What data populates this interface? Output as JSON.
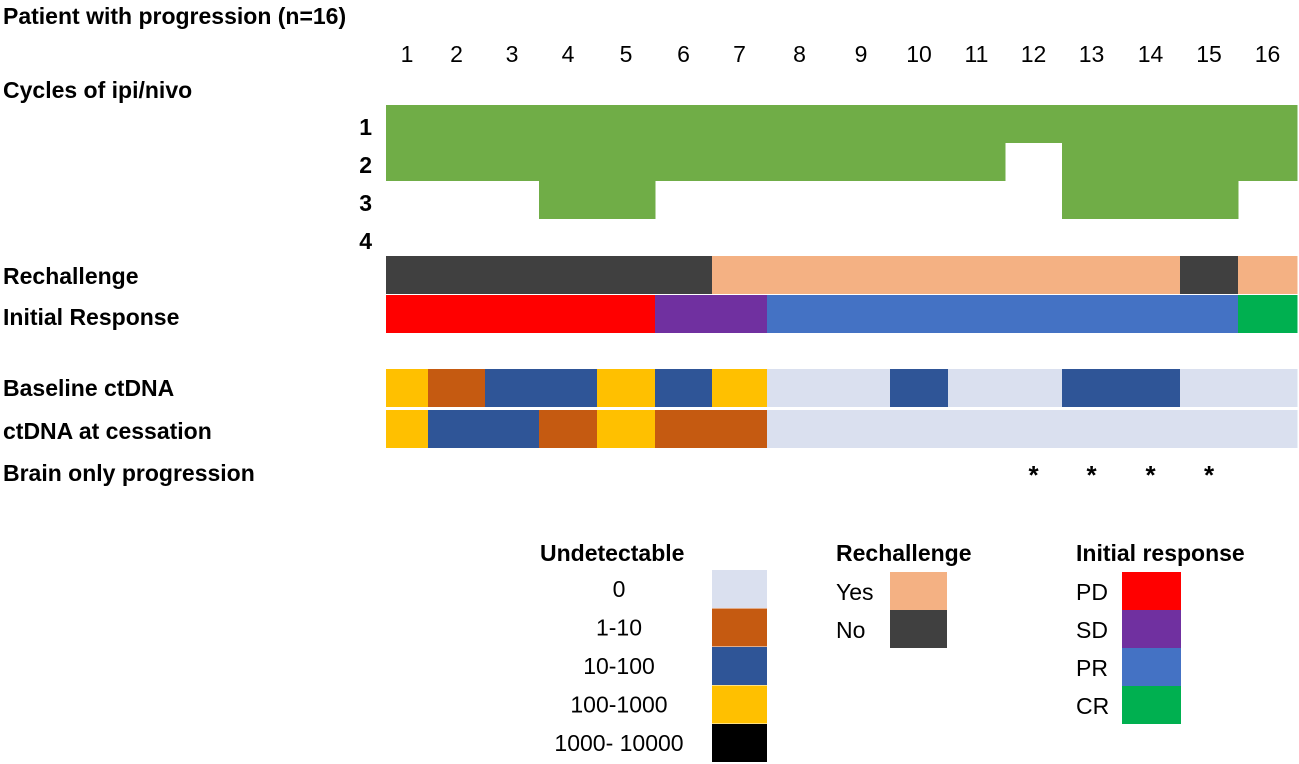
{
  "chart_data": {
    "type": "table",
    "title": "Patient with progression (n=16)",
    "patients": [
      "1",
      "2",
      "3",
      "4",
      "5",
      "6",
      "7",
      "8",
      "9",
      "10",
      "11",
      "12",
      "13",
      "14",
      "15",
      "16"
    ],
    "cycles": {
      "label": "Cycles of ipi/nivo",
      "row_labels": [
        "1",
        "2",
        "3",
        "4"
      ],
      "values": [
        2,
        2,
        2,
        3,
        3,
        2,
        2,
        2,
        2,
        2,
        2,
        1,
        3,
        3,
        3,
        2
      ]
    },
    "rechallenge": {
      "label": "Rechallenge",
      "values": [
        "No",
        "No",
        "No",
        "No",
        "No",
        "No",
        "Yes",
        "Yes",
        "Yes",
        "Yes",
        "Yes",
        "Yes",
        "Yes",
        "Yes",
        "No",
        "Yes"
      ]
    },
    "initial_response": {
      "label": "Initial Response",
      "values": [
        "PD",
        "PD",
        "PD",
        "PD",
        "PD",
        "SD",
        "SD",
        "PR",
        "PR",
        "PR",
        "PR",
        "PR",
        "PR",
        "PR",
        "PR",
        "CR"
      ]
    },
    "baseline_ctdna": {
      "label": "Baseline ctDNA",
      "values": [
        "100-1000",
        "1-10",
        "10-100",
        "10-100",
        "100-1000",
        "10-100",
        "100-1000",
        "0",
        "0",
        "10-100",
        "0",
        "0",
        "10-100",
        "10-100",
        "0",
        "0"
      ]
    },
    "ctdna_cessation": {
      "label": "ctDNA at cessation",
      "values": [
        "100-1000",
        "10-100",
        "10-100",
        "1-10",
        "100-1000",
        "1-10",
        "1-10",
        "0",
        "0",
        "0",
        "0",
        "0",
        "0",
        "0",
        "0",
        "0"
      ]
    },
    "brain_only": {
      "label": "Brain only progression",
      "marker": "*",
      "values": [
        false,
        false,
        false,
        false,
        false,
        false,
        false,
        false,
        false,
        false,
        false,
        true,
        true,
        true,
        true,
        false
      ]
    },
    "legend_ctdna": {
      "title": "Undetectable",
      "items": [
        {
          "label": "0",
          "color": "#dae0ef"
        },
        {
          "label": "1-10",
          "color": "#c55a11"
        },
        {
          "label": "10-100",
          "color": "#2f5597"
        },
        {
          "label": "100-1000",
          "color": "#ffc000"
        },
        {
          "label": "1000- 10000",
          "color": "#000000"
        }
      ]
    },
    "legend_rechallenge": {
      "title": "Rechallenge",
      "items": [
        {
          "label": "Yes",
          "color": "#f4b183"
        },
        {
          "label": "No",
          "color": "#404040"
        }
      ]
    },
    "legend_response": {
      "title": "Initial response",
      "items": [
        {
          "label": "PD",
          "color": "#ff0000"
        },
        {
          "label": "SD",
          "color": "#7030a0"
        },
        {
          "label": "PR",
          "color": "#4472c4"
        },
        {
          "label": "CR",
          "color": "#00b050"
        }
      ]
    },
    "cycle_color": "#70ad47"
  }
}
